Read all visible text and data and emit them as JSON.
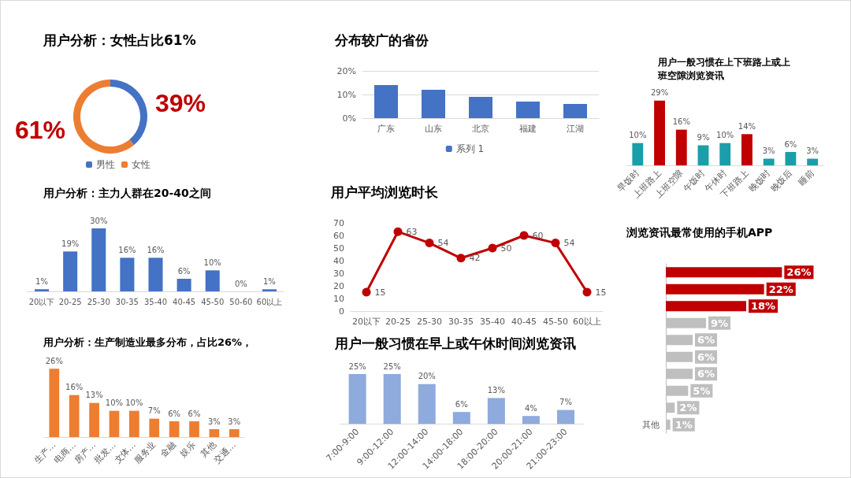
{
  "chart_data": [
    {
      "type": "donut",
      "title": "用户分析：女性占比61%",
      "categories": [
        "男性",
        "女性"
      ],
      "values": [
        39,
        61
      ],
      "colors": [
        "#4472c4",
        "#ed7d31"
      ],
      "value_labels": [
        "39%",
        "61%"
      ],
      "legend": "bottom"
    },
    {
      "type": "bar",
      "title": "分布较广的省份",
      "categories": [
        "广东",
        "山东",
        "北京",
        "福建",
        "江湖"
      ],
      "series": [
        {
          "name": "系列 1",
          "color": "#4472c4",
          "values": [
            14,
            12,
            9,
            7,
            6
          ]
        }
      ],
      "ylim": [
        0,
        20
      ],
      "yticks": [
        {
          "value": 0,
          "label": "0%"
        },
        {
          "value": 10,
          "label": "10%"
        },
        {
          "value": 20,
          "label": "20%"
        }
      ],
      "grid": "y",
      "legend": "bottom"
    },
    {
      "type": "bar",
      "title": "用户一般习惯在上下班路上或上班空隙浏览资讯",
      "categories": [
        "早饭时",
        "上班路上",
        "上班空隙",
        "午饭时",
        "午休时",
        "下班路上",
        "晚饭时",
        "晚饭后",
        "睡前"
      ],
      "values": [
        10,
        29,
        16,
        9,
        10,
        14,
        3,
        6,
        3
      ],
      "colors": [
        "#1a9eaa",
        "#c00000",
        "#c00000",
        "#1a9eaa",
        "#1a9eaa",
        "#c00000",
        "#1a9eaa",
        "#1a9eaa",
        "#1a9eaa"
      ],
      "value_labels": [
        "10%",
        "29%",
        "16%",
        "9%",
        "10%",
        "14%",
        "3%",
        "6%",
        "3%"
      ]
    },
    {
      "type": "bar",
      "title": "用户分析：主力人群在20-40之间",
      "categories": [
        "20以下",
        "20-25",
        "25-30",
        "30-35",
        "35-40",
        "40-45",
        "45-50",
        "50-60",
        "60以上"
      ],
      "values": [
        1,
        19,
        30,
        16,
        16,
        6,
        10,
        0,
        1
      ],
      "color": "#4472c4",
      "value_labels": [
        "1%",
        "19%",
        "30%",
        "16%",
        "16%",
        "6%",
        "10%",
        "0%",
        "1%"
      ]
    },
    {
      "type": "line",
      "title": "用户平均浏览时长",
      "categories": [
        "20以下",
        "20-25",
        "25-30",
        "30-35",
        "35-40",
        "40-45",
        "45-50",
        "60以上"
      ],
      "values": [
        15,
        63,
        54,
        42,
        50,
        60,
        54,
        15
      ],
      "color": "#c00000",
      "ylim": [
        0,
        70
      ],
      "yticks": [
        0,
        10,
        20,
        30,
        40,
        50,
        60,
        70
      ],
      "marker": "circle",
      "data_labels": true
    },
    {
      "type": "bar",
      "orientation": "horizontal",
      "title": "浏览资讯最常使用的手机APP",
      "categories": [
        null,
        null,
        null,
        null,
        null,
        null,
        null,
        null,
        null,
        "其他"
      ],
      "values": [
        26,
        22,
        18,
        9,
        6,
        6,
        6,
        5,
        2,
        1
      ],
      "colors": [
        "#c00000",
        "#c00000",
        "#c00000",
        "#bfbfbf",
        "#bfbfbf",
        "#bfbfbf",
        "#bfbfbf",
        "#bfbfbf",
        "#bfbfbf",
        "#bfbfbf"
      ],
      "value_labels": [
        "26%",
        "22%",
        "18%",
        "9%",
        "6%",
        "6%",
        "6%",
        "5%",
        "2%",
        "1%"
      ]
    },
    {
      "type": "bar",
      "title": "用户分析：生产制造业最多分布，占比26%，",
      "categories": [
        "生产…",
        "电商…",
        "房产…",
        "批发…",
        "文体…",
        "服务业",
        "金融",
        "娱乐",
        "其他",
        "交通…"
      ],
      "values": [
        26,
        16,
        13,
        10,
        10,
        7,
        6,
        6,
        3,
        3
      ],
      "color": "#ed7d31",
      "value_labels": [
        "26%",
        "16%",
        "13%",
        "10%",
        "10%",
        "7%",
        "6%",
        "6%",
        "3%",
        "3%"
      ]
    },
    {
      "type": "bar",
      "title": "用户一般习惯在早上或午休时间浏览资讯",
      "categories": [
        "7:00-9:00",
        "9:00-12:00",
        "12:00-14:00",
        "14:00-18:00",
        "18:00-20:00",
        "20:00-21:00",
        "21:00-23:00"
      ],
      "values": [
        25,
        25,
        20,
        6,
        13,
        4,
        7
      ],
      "color": "#8faadc",
      "value_labels": [
        "25%",
        "25%",
        "20%",
        "6%",
        "13%",
        "4%",
        "7%"
      ]
    }
  ]
}
